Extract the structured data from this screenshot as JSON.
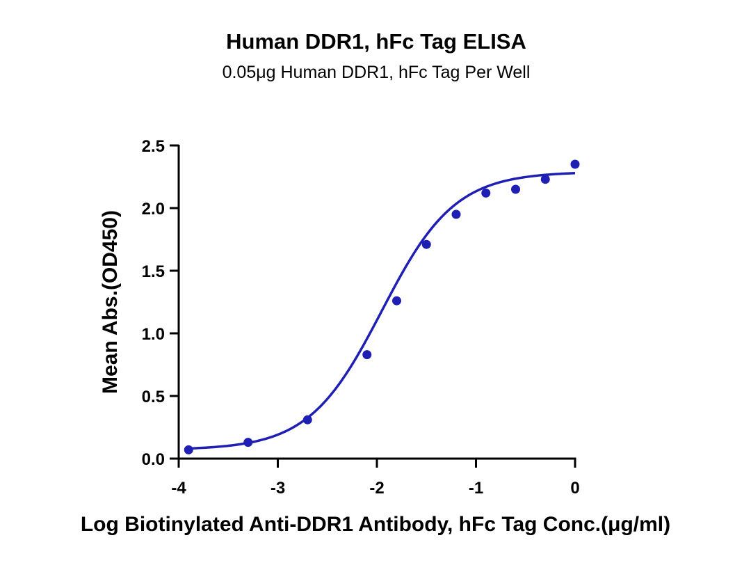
{
  "chart_data": {
    "type": "scatter",
    "title": "Human DDR1, hFc Tag ELISA",
    "subtitle": "0.05μg Human DDR1, hFc Tag Per Well",
    "xlabel": "Log Biotinylated Anti-DDR1 Antibody, hFc Tag Conc.(μg/ml)",
    "ylabel": "Mean Abs.(OD450)",
    "xlim": [
      -4,
      0
    ],
    "ylim": [
      0,
      2.5
    ],
    "x_ticks": [
      -4,
      -3,
      -2,
      -1,
      0
    ],
    "x_tick_labels": [
      "-4",
      "-3",
      "-2",
      "-1",
      "0"
    ],
    "y_ticks": [
      0,
      0.5,
      1.0,
      1.5,
      2.0,
      2.5
    ],
    "y_tick_labels": [
      "0.0",
      "0.5",
      "1.0",
      "1.5",
      "2.0",
      "2.5"
    ],
    "grid": false,
    "legend": "none",
    "color": "#1f1fb4",
    "series": [
      {
        "x": [
          -3.9,
          -3.3,
          -2.7,
          -2.1,
          -1.8,
          -1.5,
          -1.2,
          -0.9,
          -0.6,
          -0.3,
          0.0
        ],
        "y": [
          0.07,
          0.13,
          0.31,
          0.83,
          1.26,
          1.71,
          1.95,
          2.12,
          2.15,
          2.23,
          2.35
        ]
      }
    ],
    "fit": {
      "model": "4PL",
      "bottom": 0.07,
      "top": 2.29,
      "logEC50": -1.95,
      "hill": 1.18
    }
  }
}
